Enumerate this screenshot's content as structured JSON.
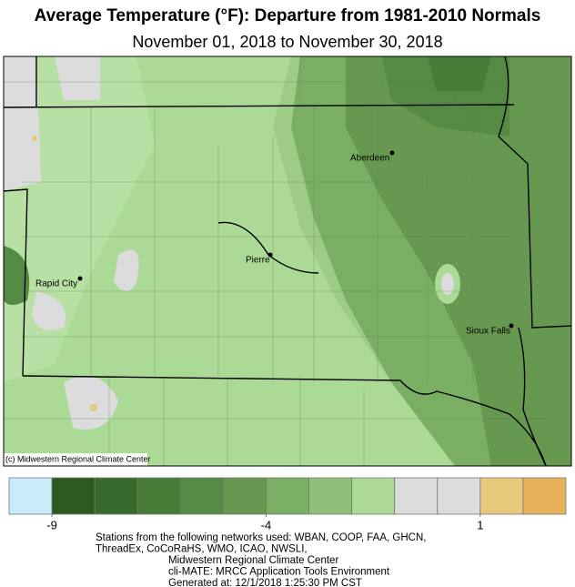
{
  "header": {
    "title": "Average Temperature (°F): Departure from 1981-2010 Normals",
    "subtitle": "November 01, 2018 to November 30, 2018"
  },
  "map": {
    "cities": [
      {
        "label": "Aberdeen"
      },
      {
        "label": "Pierre"
      },
      {
        "label": "Rapid City"
      },
      {
        "label": "Sioux Falls"
      }
    ],
    "credit": "(c) Midwestern Regional Climate Center"
  },
  "legend": {
    "range": [
      -10,
      3
    ],
    "colors": [
      "#c8ecfa",
      "#2b5a1f",
      "#386b2b",
      "#467c37",
      "#548a43",
      "#66994f",
      "#7aae63",
      "#8fc077",
      "#aada95",
      "#dcdcdc",
      "#dcdcdc",
      "#e6c97a",
      "#e6b158"
    ],
    "ticks": [
      -9,
      -4,
      1
    ]
  },
  "footer": {
    "lines": [
      "Stations from the following networks used: WBAN, COOP, FAA, GHCN,",
      "ThreadEx, CoCoRaHS, WMO, ICAO, NWSLI,",
      "Midwestern Regional Climate Center",
      "cli-MATE: MRCC Application Tools Environment",
      "Generated at: 12/1/2018 1:25:30 PM CST"
    ]
  }
}
